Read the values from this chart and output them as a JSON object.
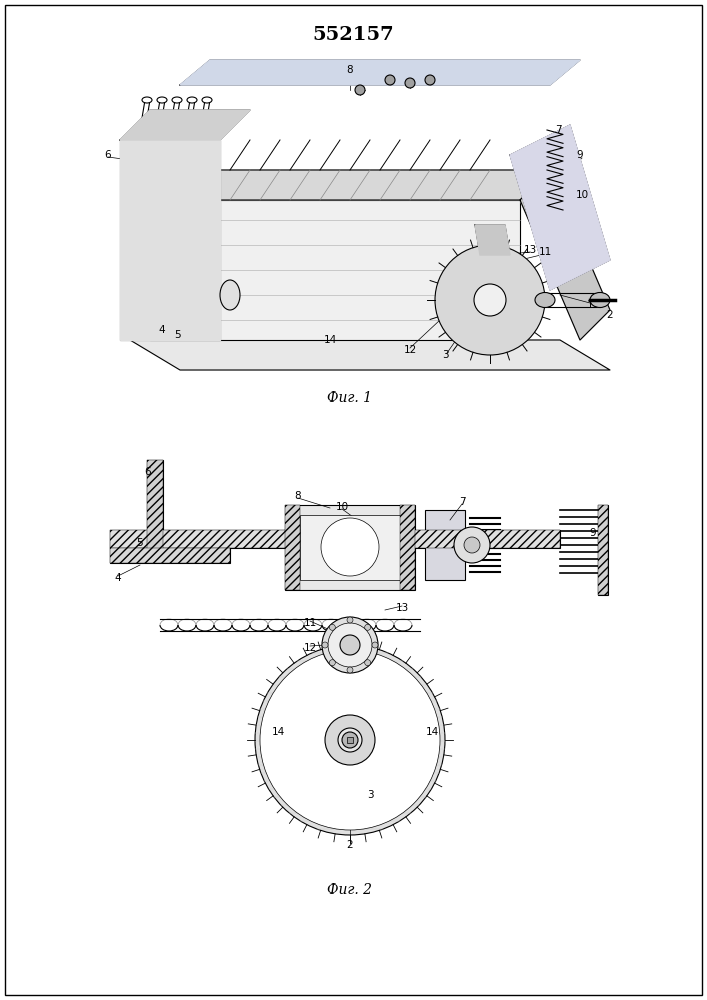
{
  "title": "552157",
  "title_fontsize": 14,
  "fig1_label": "Фиг. 1",
  "fig2_label": "Фиг. 2",
  "background_color": "#ffffff",
  "line_color": "#000000",
  "fig_width": 7.07,
  "fig_height": 10.0,
  "dpi": 100
}
